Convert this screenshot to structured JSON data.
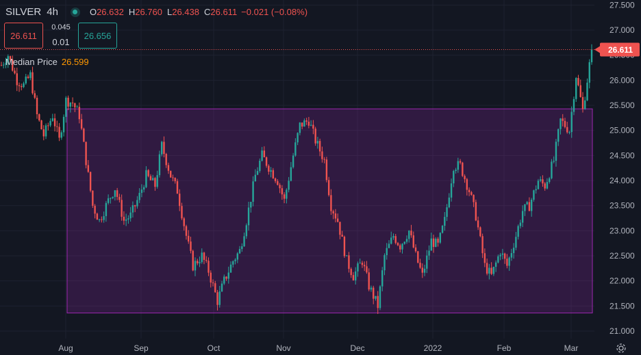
{
  "header": {
    "symbol": "SILVER",
    "interval": "4h",
    "ohlc": [
      {
        "key": "O",
        "value": "26.632"
      },
      {
        "key": "H",
        "value": "26.760"
      },
      {
        "key": "L",
        "value": "26.438"
      },
      {
        "key": "C",
        "value": "26.611"
      }
    ],
    "change": "−0.021 (−0.08%)"
  },
  "trade": {
    "sell_price": "26.611",
    "spread_top": "0.045",
    "spread_bottom": "0.01",
    "buy_price": "26.656"
  },
  "indicator": {
    "name": "Median Price",
    "value": "26.599"
  },
  "colors": {
    "background": "#131722",
    "up": "#26a69a",
    "down": "#ef5350",
    "indicator": "#ff9800",
    "rectangle_border": "#9c27b0",
    "text": "#d1d4dc"
  },
  "chart_data": {
    "type": "candlestick",
    "y_ticks": [
      "27.500",
      "27.000",
      "26.500",
      "26.000",
      "25.500",
      "25.000",
      "24.500",
      "24.000",
      "23.500",
      "23.000",
      "22.500",
      "22.000",
      "21.500",
      "21.000"
    ],
    "ylim": [
      20.85,
      27.6
    ],
    "x_ticks": [
      "Aug",
      "Sep",
      "Oct",
      "Nov",
      "Dec",
      "2022",
      "Feb",
      "Mar"
    ],
    "last_price_label": "26.611",
    "last_price": 26.611,
    "rectangle": {
      "top": 25.43,
      "bottom": 21.36
    },
    "price_path": [
      [
        0,
        26.3
      ],
      [
        3,
        26.5
      ],
      [
        7,
        26.0
      ],
      [
        10,
        25.9
      ],
      [
        13,
        26.1
      ],
      [
        16,
        25.3
      ],
      [
        19,
        24.9
      ],
      [
        23,
        25.3
      ],
      [
        26,
        24.8
      ],
      [
        29,
        25.6
      ],
      [
        32,
        25.55
      ],
      [
        35,
        25.3
      ],
      [
        38,
        24.4
      ],
      [
        41,
        23.5
      ],
      [
        44,
        23.2
      ],
      [
        48,
        23.6
      ],
      [
        51,
        23.85
      ],
      [
        55,
        23.2
      ],
      [
        58,
        23.3
      ],
      [
        62,
        23.7
      ],
      [
        65,
        24.1
      ],
      [
        69,
        23.9
      ],
      [
        72,
        24.7
      ],
      [
        76,
        24.1
      ],
      [
        79,
        23.8
      ],
      [
        83,
        22.9
      ],
      [
        86,
        22.3
      ],
      [
        90,
        22.5
      ],
      [
        93,
        22.2
      ],
      [
        97,
        21.6
      ],
      [
        100,
        22.0
      ],
      [
        104,
        22.4
      ],
      [
        107,
        22.6
      ],
      [
        110,
        23.2
      ],
      [
        114,
        24.1
      ],
      [
        117,
        24.5
      ],
      [
        121,
        24.2
      ],
      [
        124,
        24.0
      ],
      [
        127,
        23.6
      ],
      [
        131,
        24.5
      ],
      [
        134,
        25.1
      ],
      [
        138,
        25.2
      ],
      [
        141,
        24.8
      ],
      [
        145,
        24.4
      ],
      [
        148,
        23.5
      ],
      [
        151,
        23.2
      ],
      [
        155,
        22.4
      ],
      [
        158,
        22.1
      ],
      [
        162,
        22.4
      ],
      [
        165,
        21.9
      ],
      [
        169,
        21.5
      ],
      [
        172,
        22.5
      ],
      [
        176,
        22.9
      ],
      [
        179,
        22.7
      ],
      [
        183,
        23.0
      ],
      [
        186,
        22.5
      ],
      [
        189,
        22.1
      ],
      [
        193,
        22.8
      ],
      [
        196,
        22.7
      ],
      [
        199,
        23.2
      ],
      [
        203,
        24.3
      ],
      [
        206,
        24.3
      ],
      [
        210,
        23.8
      ],
      [
        213,
        23.3
      ],
      [
        217,
        22.3
      ],
      [
        220,
        22.1
      ],
      [
        224,
        22.6
      ],
      [
        227,
        22.3
      ],
      [
        231,
        22.9
      ],
      [
        234,
        23.4
      ],
      [
        237,
        23.5
      ],
      [
        241,
        24.0
      ],
      [
        244,
        23.9
      ],
      [
        248,
        24.4
      ],
      [
        251,
        25.2
      ],
      [
        255,
        25.0
      ],
      [
        258,
        26.1
      ],
      [
        261,
        25.4
      ],
      [
        265,
        26.611
      ]
    ]
  }
}
